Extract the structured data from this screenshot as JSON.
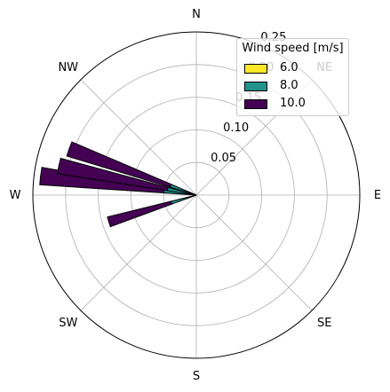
{
  "chart_data": {
    "type": "windrose",
    "title": "",
    "direction_labels": [
      "N",
      "NE",
      "E",
      "SE",
      "S",
      "SW",
      "W",
      "NW"
    ],
    "direction_angles_deg": [
      0,
      45,
      90,
      135,
      180,
      225,
      270,
      315
    ],
    "radial_ticks": [
      0.05,
      0.1,
      0.15,
      0.2,
      0.25
    ],
    "radial_tick_labels": [
      "0.05",
      "0.10",
      "0.15",
      "0.20",
      "0.25"
    ],
    "rlim": [
      0,
      0.25
    ],
    "grid": true,
    "theta_zero": "N",
    "theta_direction": "clockwise",
    "bins": [
      {
        "direction_deg": 253,
        "speed_6": 0.0,
        "speed_8": 0.04,
        "speed_10": 0.1
      },
      {
        "direction_deg": 277,
        "speed_6": 0.0,
        "speed_8": 0.05,
        "speed_10": 0.19
      },
      {
        "direction_deg": 282,
        "speed_6": 0.0,
        "speed_8": 0.045,
        "speed_10": 0.17
      },
      {
        "direction_deg": 290,
        "speed_6": 0.0,
        "speed_8": 0.042,
        "speed_10": 0.165
      }
    ],
    "series": [
      {
        "name": "6.0",
        "color": "#fde725"
      },
      {
        "name": "8.0",
        "color": "#21918c"
      },
      {
        "name": "10.0",
        "color": "#440154"
      }
    ],
    "legend": {
      "title": "Wind speed [m/s]",
      "placement": "top-right"
    }
  }
}
